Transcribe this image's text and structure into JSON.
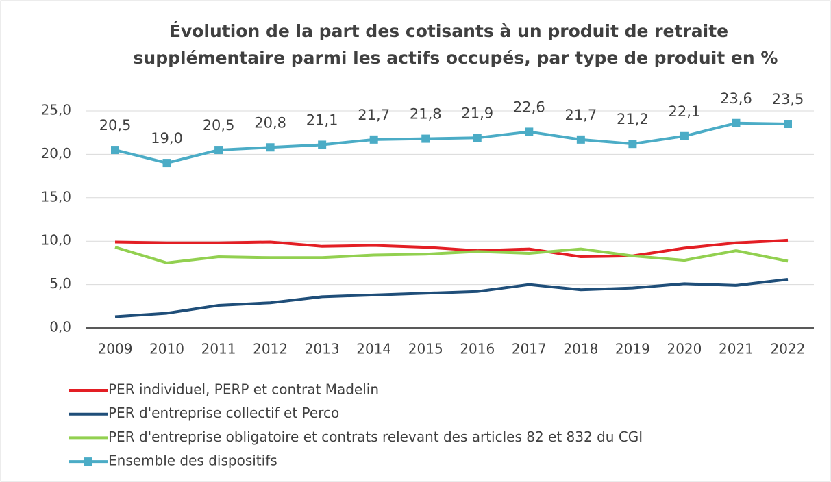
{
  "chart_data": {
    "type": "line",
    "title": [
      "Évolution de la part des cotisants à un produit de retraite",
      "supplémentaire parmi les actifs occupés, par type de produit en %"
    ],
    "categories": [
      "2009",
      "2010",
      "2011",
      "2012",
      "2013",
      "2014",
      "2015",
      "2016",
      "2017",
      "2018",
      "2019",
      "2020",
      "2021",
      "2022"
    ],
    "ylim": [
      0,
      25
    ],
    "yticks": [
      {
        "value": 0,
        "label": "0,0"
      },
      {
        "value": 5,
        "label": "5,0"
      },
      {
        "value": 10,
        "label": "10,0"
      },
      {
        "value": 15,
        "label": "15,0"
      },
      {
        "value": 20,
        "label": "20,0"
      },
      {
        "value": 25,
        "label": "25,0"
      }
    ],
    "grid": true,
    "legend": "bottom",
    "series": [
      {
        "name": "PER individuel, PERP et contrat Madelin",
        "color": "#e31e24",
        "values": [
          9.9,
          9.8,
          9.8,
          9.9,
          9.4,
          9.5,
          9.3,
          8.9,
          9.1,
          8.2,
          8.3,
          9.2,
          9.8,
          10.1
        ]
      },
      {
        "name": "PER d'entreprise collectif et Perco",
        "color": "#1f4e79",
        "values": [
          1.3,
          1.7,
          2.6,
          2.9,
          3.6,
          3.8,
          4.0,
          4.2,
          5.0,
          4.4,
          4.6,
          5.1,
          4.9,
          5.6
        ]
      },
      {
        "name": "PER d'entreprise obligatoire et contrats relevant des articles 82 et 832 du CGI",
        "color": "#92d050",
        "values": [
          9.3,
          7.5,
          8.2,
          8.1,
          8.1,
          8.4,
          8.5,
          8.8,
          8.6,
          9.1,
          8.3,
          7.8,
          8.9,
          7.7
        ]
      },
      {
        "name": "Ensemble des dispositifs",
        "color": "#4bacc6",
        "marker": "square",
        "values": [
          20.5,
          19.0,
          20.5,
          20.8,
          21.1,
          21.7,
          21.8,
          21.9,
          22.6,
          21.7,
          21.2,
          22.1,
          23.6,
          23.5
        ],
        "value_labels": [
          "20,5",
          "19,0",
          "20,5",
          "20,8",
          "21,1",
          "21,7",
          "21,8",
          "21,9",
          "22,6",
          "21,7",
          "21,2",
          "22,1",
          "23,6",
          "23,5"
        ]
      }
    ]
  }
}
